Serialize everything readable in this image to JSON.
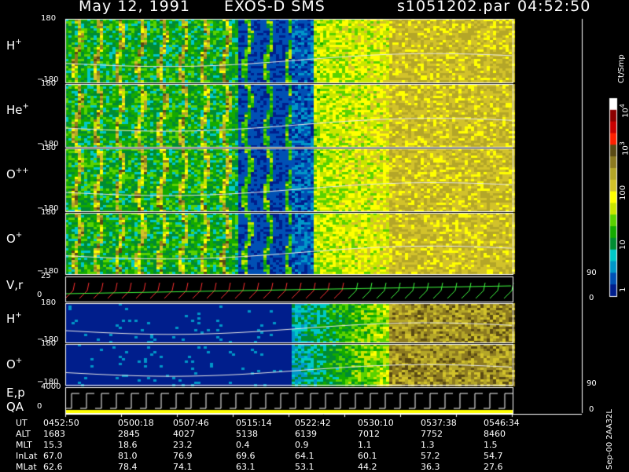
{
  "header": {
    "date": "May 12, 1991",
    "instrument": "EXOS-D SMS",
    "file": "s1051202.par",
    "time": "04:52:50"
  },
  "panels": [
    {
      "id": "h-plus",
      "label": "H",
      "sup": "+",
      "ymax": "180",
      "ymin": "−180"
    },
    {
      "id": "he-plus",
      "label": "He",
      "sup": "+",
      "ymax": "180",
      "ymin": "−180"
    },
    {
      "id": "o-plus-plus",
      "label": "O",
      "sup": "++",
      "ymax": "180",
      "ymin": "−180"
    },
    {
      "id": "o-plus",
      "label": "O",
      "sup": "+",
      "ymax": "180",
      "ymin": "−180"
    },
    {
      "id": "vr",
      "label": "V,r",
      "sup": "",
      "ymax": "25",
      "ymin": "0",
      "right_top": "90",
      "right_bottom": "0"
    },
    {
      "id": "h-plus-2",
      "label": "H",
      "sup": "+",
      "ymax": "180",
      "ymin": "−180"
    },
    {
      "id": "o-plus-2",
      "label": "O",
      "sup": "+",
      "ymax": "180",
      "ymin": "−180"
    },
    {
      "id": "ep",
      "label": "E,p",
      "label2": "QA",
      "sup": "",
      "ymax": "4000",
      "ymin": "0",
      "right_top": "90",
      "right_bottom": "0"
    }
  ],
  "colorbar": {
    "unit": "Ct/Smp",
    "labels": [
      {
        "text": "10",
        "sup": "4"
      },
      {
        "text": "10",
        "sup": "3"
      },
      {
        "text": "100",
        "sup": ""
      },
      {
        "text": "10",
        "sup": ""
      },
      {
        "text": "1",
        "sup": ""
      }
    ],
    "colors": [
      "#ffffff",
      "#8c0000",
      "#c80000",
      "#ff2000",
      "#5a4a14",
      "#8c7a20",
      "#b4a628",
      "#d2c22a",
      "#ffff00",
      "#c8e600",
      "#5ad200",
      "#14aa00",
      "#008c32",
      "#00c8c8",
      "#0096c8",
      "#0050b4",
      "#001e8c"
    ]
  },
  "timeline": {
    "rows": [
      {
        "label": "UT",
        "values": [
          "0452:50",
          "0500:18",
          "0507:46",
          "0515:14",
          "0522:42",
          "0530:10",
          "0537:38",
          "0546:34"
        ]
      },
      {
        "label": "ALT",
        "values": [
          "1683",
          "2845",
          "4027",
          "5138",
          "6139",
          "7012",
          "7752",
          "8460"
        ]
      },
      {
        "label": "MLT",
        "values": [
          "15.3",
          "18.6",
          "23.2",
          "0.4",
          "0.9",
          "1.1",
          "1.3",
          "1.5"
        ]
      },
      {
        "label": "InLat",
        "values": [
          "67.0",
          "81.0",
          "76.9",
          "69.6",
          "64.1",
          "60.1",
          "57.2",
          "54.7"
        ]
      },
      {
        "label": "MLat",
        "values": [
          "62.6",
          "78.4",
          "74.1",
          "63.1",
          "53.1",
          "44.2",
          "36.3",
          "27.6"
        ]
      }
    ]
  },
  "footer": {
    "stamp": "Sep-00 2AA32L"
  },
  "chart_data": {
    "type": "heatmap",
    "title": "May 12, 1991   EXOS-D SMS",
    "x_tick_labels": [
      "0452:50",
      "0500:18",
      "0507:46",
      "0515:14",
      "0522:42",
      "0530:10",
      "0537:38",
      "0546:34"
    ],
    "colorbar_ticks": [
      "1",
      "10",
      "100",
      "10^3",
      "10^4"
    ],
    "colorbar_unit": "Ct/Smp",
    "panels": [
      "H+",
      "He+",
      "O++",
      "O+",
      "V,r",
      "H+",
      "O+",
      "E,p / QA"
    ]
  }
}
